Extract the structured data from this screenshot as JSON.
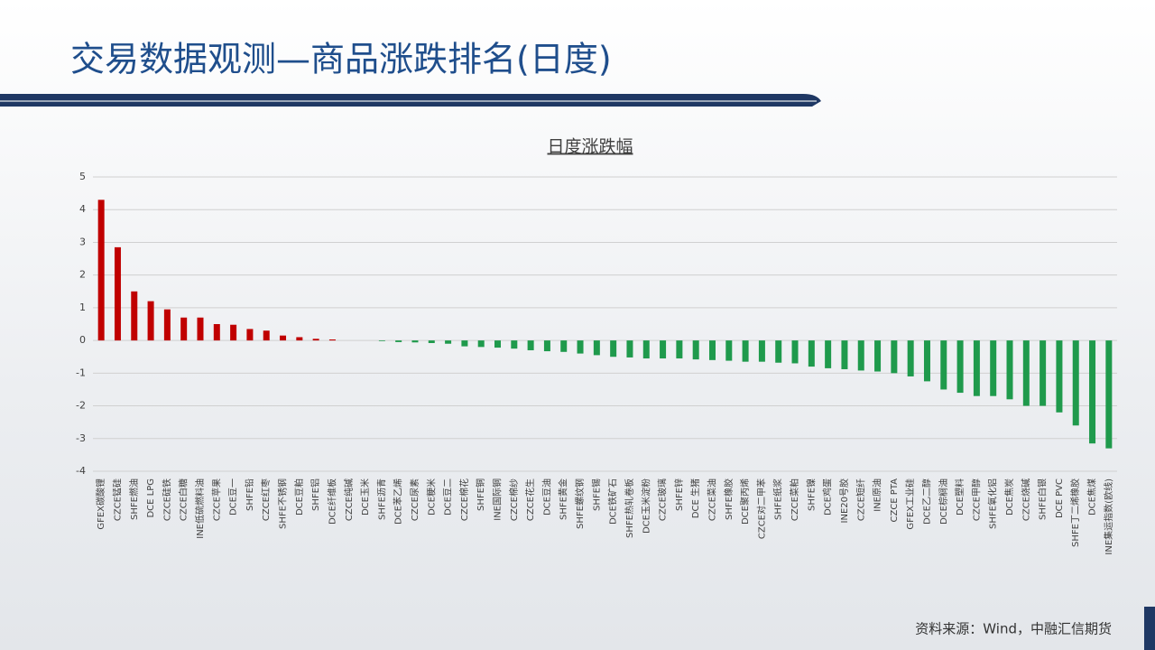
{
  "slide_title": "交易数据观测—商品涨跌排名(日度)",
  "source": "资料来源：Wind，中融汇信期货",
  "chart_data": {
    "type": "bar",
    "title": "日度涨跌幅",
    "categories": [
      "GFEX碳酸锂",
      "CZCE锰硅",
      "SHFE燃油",
      "DCE LPG",
      "CZCE硅铁",
      "CZCE白糖",
      "INE低硫燃料油",
      "CZCE苹果",
      "DCE豆一",
      "SHFE铅",
      "CZCE红枣",
      "SHFE不锈钢",
      "DCE豆粕",
      "SHFE铝",
      "DCE纤维板",
      "CZCE纯碱",
      "DCE玉米",
      "SHFE沥青",
      "DCE苯乙烯",
      "CZCE尿素",
      "DCE粳米",
      "DCE豆二",
      "CZCE棉花",
      "SHFE铜",
      "INE国际铜",
      "CZCE棉纱",
      "CZCE花生",
      "DCE豆油",
      "SHFE黄金",
      "SHFE螺纹钢",
      "SHFE锡",
      "DCE铁矿石",
      "SHFE热轧卷板",
      "DCE玉米淀粉",
      "CZCE玻璃",
      "SHFE锌",
      "DCE 生猪",
      "CZCE菜油",
      "SHFE橡胶",
      "DCE聚丙烯",
      "CZCE对二甲苯",
      "SHFE纸浆",
      "CZCE菜粕",
      "SHFE镍",
      "DCE鸡蛋",
      "INE20号胶",
      "CZCE短纤",
      "INE原油",
      "CZCE PTA",
      "GFEX工业硅",
      "DCE乙二醇",
      "DCE棕榈油",
      "DCE塑料",
      "CZCE甲醇",
      "SHFE氧化铝",
      "DCE焦炭",
      "CZCE烧碱",
      "SHFE白银",
      "DCE PVC",
      "SHFE丁二烯橡胶",
      "DCE焦煤",
      "INE集运指数(欧线)"
    ],
    "values": [
      4.3,
      2.85,
      1.5,
      1.2,
      0.95,
      0.7,
      0.7,
      0.5,
      0.48,
      0.35,
      0.3,
      0.15,
      0.1,
      0.05,
      0.03,
      0,
      0,
      -0.02,
      -0.05,
      -0.06,
      -0.08,
      -0.1,
      -0.18,
      -0.2,
      -0.22,
      -0.25,
      -0.3,
      -0.33,
      -0.35,
      -0.4,
      -0.45,
      -0.5,
      -0.52,
      -0.55,
      -0.55,
      -0.55,
      -0.58,
      -0.6,
      -0.62,
      -0.65,
      -0.65,
      -0.68,
      -0.7,
      -0.8,
      -0.85,
      -0.88,
      -0.92,
      -0.95,
      -1.0,
      -1.1,
      -1.25,
      -1.5,
      -1.6,
      -1.7,
      -1.7,
      -1.8,
      -2.0,
      -2.0,
      -2.2,
      -2.6,
      -3.15,
      -3.3
    ],
    "positive_color": "#c00000",
    "negative_color": "#1f9a4c",
    "ylim": [
      -4,
      5
    ],
    "yticks": [
      -4,
      -3,
      -2,
      -1,
      0,
      1,
      2,
      3,
      4,
      5
    ],
    "grid": true
  }
}
